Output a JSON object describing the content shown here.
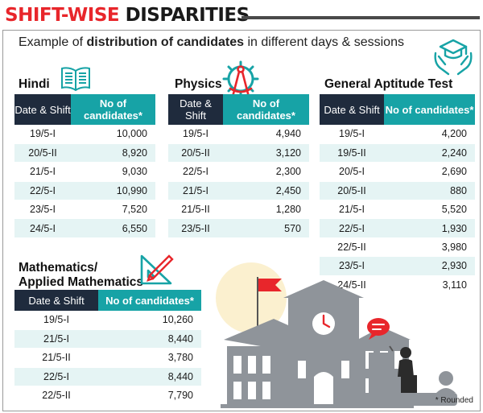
{
  "headline": {
    "part1": "SHIFT-WISE",
    "part2": "DISPARITIES"
  },
  "subtitle": {
    "pre": "Example of ",
    "bold": "distribution of candidates",
    "post": " in different days & sessions"
  },
  "colors": {
    "header_dark": "#1f2b3d",
    "header_teal": "#17a3a6",
    "row_alt": "#e5f4f4",
    "accent_red": "#e8262b"
  },
  "sections": {
    "hindi": {
      "title": "Hindi",
      "headers": [
        "Date & Shift",
        "No of candidates*"
      ],
      "rows": [
        {
          "shift": "19/5-I",
          "count": "10,000"
        },
        {
          "shift": "20/5-II",
          "count": "8,920"
        },
        {
          "shift": "21/5-I",
          "count": "9,030"
        },
        {
          "shift": "22/5-I",
          "count": "10,990"
        },
        {
          "shift": "23/5-I",
          "count": "7,520"
        },
        {
          "shift": "24/5-I",
          "count": "6,550"
        }
      ]
    },
    "physics": {
      "title": "Physics",
      "headers": [
        "Date & Shift",
        "No of candidates*"
      ],
      "rows": [
        {
          "shift": "19/5-I",
          "count": "4,940"
        },
        {
          "shift": "20/5-II",
          "count": "3,120"
        },
        {
          "shift": "22/5-I",
          "count": "2,300"
        },
        {
          "shift": "21/5-I",
          "count": "2,450"
        },
        {
          "shift": "21/5-II",
          "count": "1,280"
        },
        {
          "shift": "23/5-II",
          "count": "570"
        }
      ]
    },
    "gat": {
      "title": "General Aptitude Test",
      "headers": [
        "Date & Shift",
        "No of candidates*"
      ],
      "rows": [
        {
          "shift": "19/5-I",
          "count": "4,200"
        },
        {
          "shift": "19/5-II",
          "count": "2,240"
        },
        {
          "shift": "20/5-I",
          "count": "2,690"
        },
        {
          "shift": "20/5-II",
          "count": "880"
        },
        {
          "shift": "21/5-I",
          "count": "5,520"
        },
        {
          "shift": "22/5-I",
          "count": "1,930"
        },
        {
          "shift": "22/5-II",
          "count": "3,980"
        },
        {
          "shift": "23/5-I",
          "count": "2,930"
        },
        {
          "shift": "24/5-II",
          "count": "3,110"
        }
      ]
    },
    "maths": {
      "title_line1": "Mathematics/",
      "title_line2": "Applied Mathematics",
      "headers": [
        "Date & Shift",
        "No of candidates*"
      ],
      "rows": [
        {
          "shift": "19/5-I",
          "count": "10,260"
        },
        {
          "shift": "21/5-I",
          "count": "8,440"
        },
        {
          "shift": "21/5-II",
          "count": "3,780"
        },
        {
          "shift": "22/5-I",
          "count": "8,440"
        },
        {
          "shift": "22/5-II",
          "count": "7,790"
        }
      ]
    }
  },
  "footnote": "* Rounded",
  "icons": [
    "open-book-icon",
    "gear-compass-icon",
    "graduation-hands-icon",
    "set-square-pencil-icon",
    "school-building-illustration"
  ]
}
